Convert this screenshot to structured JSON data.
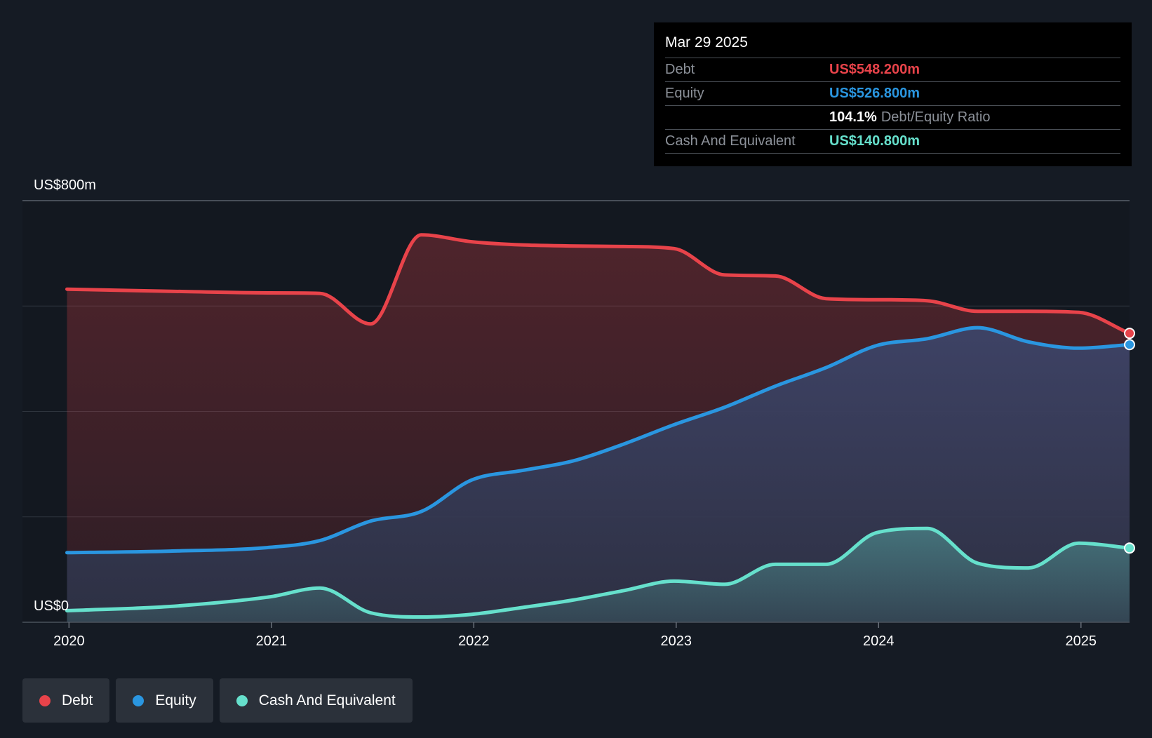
{
  "chart_data": {
    "type": "area",
    "y_top_label": "US$800m",
    "y_bottom_label": "US$0",
    "ylim": [
      0,
      800
    ],
    "x_tick_labels": [
      "2020",
      "2021",
      "2022",
      "2023",
      "2024",
      "2025"
    ],
    "x_ticks": [
      2020.0,
      2021.0,
      2022.0,
      2023.0,
      2024.0,
      2025.0
    ],
    "xlim": [
      2019.77,
      2025.24
    ],
    "grid": true,
    "series": [
      {
        "name": "Debt",
        "color": "#e8434a",
        "x": [
          2019.99,
          2020.5,
          2020.99,
          2021.24,
          2021.49,
          2021.74,
          2021.99,
          2022.24,
          2022.74,
          2022.99,
          2023.24,
          2023.49,
          2023.74,
          2023.99,
          2024.24,
          2024.49,
          2024.74,
          2024.99,
          2025.24
        ],
        "values": [
          632,
          628,
          625,
          624,
          566,
          735,
          722,
          716,
          713,
          709,
          659,
          657,
          614,
          612,
          610,
          590,
          590,
          588,
          548.2
        ]
      },
      {
        "name": "Equity",
        "color": "#2a96e0",
        "x": [
          2019.99,
          2020.5,
          2020.99,
          2021.24,
          2021.49,
          2021.74,
          2021.99,
          2022.24,
          2022.49,
          2022.74,
          2022.99,
          2023.24,
          2023.49,
          2023.74,
          2023.99,
          2024.24,
          2024.49,
          2024.74,
          2024.99,
          2025.24
        ],
        "values": [
          132,
          135,
          142,
          155,
          192,
          210,
          270,
          288,
          306,
          338,
          375,
          408,
          448,
          483,
          525,
          538,
          559,
          532,
          520,
          526.8
        ]
      },
      {
        "name": "Cash And Equivalent",
        "color": "#66e0cc",
        "x": [
          2019.99,
          2020.5,
          2020.99,
          2021.24,
          2021.49,
          2021.74,
          2021.99,
          2022.24,
          2022.49,
          2022.74,
          2022.99,
          2023.24,
          2023.49,
          2023.74,
          2023.99,
          2024.24,
          2024.49,
          2024.74,
          2024.99,
          2025.24
        ],
        "values": [
          22,
          30,
          48,
          65,
          18,
          10,
          15,
          28,
          42,
          60,
          78,
          72,
          110,
          110,
          170,
          178,
          112,
          103,
          150,
          140.8
        ]
      }
    ]
  },
  "tooltip": {
    "date": "Mar 29 2025",
    "rows": [
      {
        "label": "Debt",
        "value": "US$548.200m",
        "color": "#e8434a"
      },
      {
        "label": "Equity",
        "value": "US$526.800m",
        "color": "#2a96e0"
      },
      {
        "ratio_value": "104.1%",
        "ratio_label": "Debt/Equity Ratio"
      },
      {
        "label": "Cash And Equivalent",
        "value": "US$140.800m",
        "color": "#66e0cc"
      }
    ]
  },
  "legend": [
    {
      "label": "Debt",
      "color": "#e8434a"
    },
    {
      "label": "Equity",
      "color": "#2a96e0"
    },
    {
      "label": "Cash And Equivalent",
      "color": "#66e0cc"
    }
  ]
}
